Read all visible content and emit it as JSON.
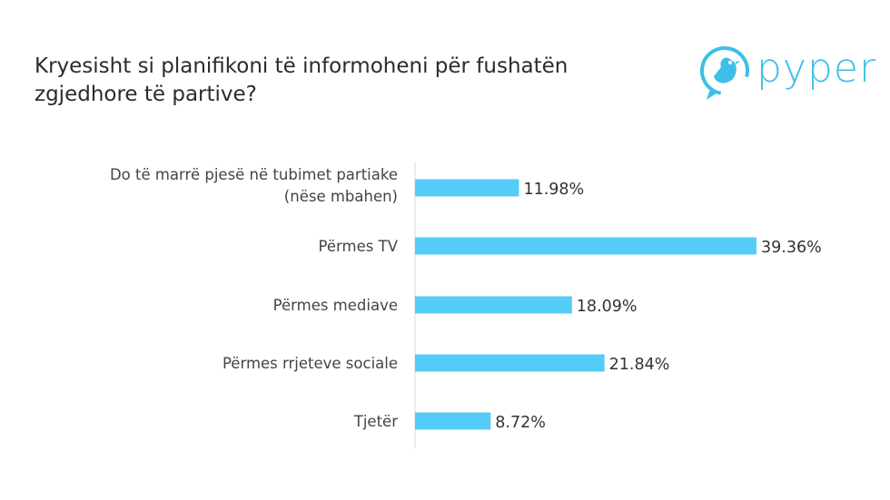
{
  "title_lines": [
    "Kryesisht si planifikoni të informoheni për fushatën",
    "zgjedhore të partive?"
  ],
  "logo": {
    "text": "pyper",
    "icon": "bird-icon",
    "color": "#3dbfe8"
  },
  "colors": {
    "bar": "#55ccf7",
    "axis": "#d9d9d9",
    "text": "#444444"
  },
  "chart_data": {
    "type": "bar",
    "orientation": "horizontal",
    "categories": [
      [
        "Do të marrë pjesë në tubimet partiake",
        "(nëse mbahen)"
      ],
      [
        "Përmes TV"
      ],
      [
        "Përmes mediave"
      ],
      [
        "Përmes rrjeteve sociale"
      ],
      [
        "Tjetër"
      ]
    ],
    "values": [
      11.98,
      39.36,
      18.09,
      21.84,
      8.72
    ],
    "value_labels": [
      "11.98%",
      "39.36%",
      "18.09%",
      "21.84%",
      "8.72%"
    ],
    "grid": false,
    "legend": false
  }
}
